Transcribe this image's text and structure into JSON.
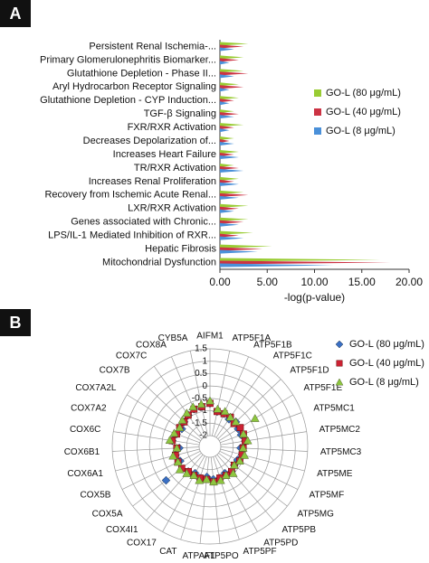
{
  "chart_data": [
    {
      "type": "bar",
      "orientation": "horizontal",
      "panel_label": "A",
      "categories": [
        "Persistent Renal Ischemia-...",
        "Primary Glomerulonephritis Biomarker...",
        "Glutathione Depletion - Phase II...",
        "Aryl Hydrocarbon Receptor Signaling",
        "Glutathione Depletion - CYP Induction...",
        "TGF-β Signaling",
        "FXR/RXR Activation",
        "Decreases Depolarization of...",
        "Increases Heart Failure",
        "TR/RXR Activation",
        "Increases Renal Proliferation",
        "Recovery from Ischemic Acute Renal...",
        "LXR/RXR Activation",
        "Genes associated with Chronic...",
        "LPS/IL-1 Mediated Inhibition of RXR...",
        "Hepatic Fibrosis",
        "Mitochondrial Dysfunction"
      ],
      "series": [
        {
          "name": "GO-L (80 μg/mL)",
          "color": "#99cc33",
          "values": [
            3,
            2.5,
            2.5,
            2,
            2,
            1.5,
            2.5,
            1.5,
            2,
            1.5,
            2,
            2.5,
            3,
            3,
            3.5,
            5.5,
            17
          ]
        },
        {
          "name": "GO-L (40 μg/mL)",
          "color": "#cc3344",
          "values": [
            2.5,
            2,
            3,
            2.5,
            1.5,
            2,
            1.5,
            1,
            1.5,
            2,
            1.5,
            3,
            2,
            2.5,
            2,
            4.5,
            18
          ]
        },
        {
          "name": "GO-L (8 μg/mL)",
          "color": "#4a90d9",
          "values": [
            1.5,
            1,
            1.5,
            1,
            1,
            1.5,
            1,
            1.5,
            2,
            2.5,
            2,
            2,
            1.5,
            2,
            2.5,
            4,
            12
          ]
        }
      ],
      "xlabel": "-log(p-value)",
      "xlim": [
        0,
        20
      ],
      "xticks": [
        {
          "value": 0,
          "label": "0.00"
        },
        {
          "value": 5,
          "label": "5.00"
        },
        {
          "value": 10,
          "label": "10.00"
        },
        {
          "value": 15,
          "label": "15.00"
        },
        {
          "value": 20,
          "label": "20.00"
        }
      ],
      "legend": "right"
    },
    {
      "type": "radar",
      "panel_label": "B",
      "categories": [
        "AIFM1",
        "ATP5F1A",
        "ATP5F1B",
        "ATP5F1C",
        "ATP5F1D",
        "ATP5F1E",
        "ATP5MC1",
        "ATP5MC2",
        "ATP5MC3",
        "ATP5ME",
        "ATP5MF",
        "ATP5MG",
        "ATP5PB",
        "ATP5PD",
        "ATP5PF",
        "ATP5PO",
        "ATPAF1",
        "CAT",
        "COX17",
        "COX4I1",
        "COX5A",
        "COX5B",
        "COX6A1",
        "COX6B1",
        "COX6C",
        "COX7A2",
        "COX7A2L",
        "COX7B",
        "COX7C",
        "COX8A",
        "CYB5A"
      ],
      "series": [
        {
          "name": "GO-L (80 μg/mL)",
          "color": "#3a6fc4",
          "marker": "diamond",
          "values": [
            -0.7,
            -1.0,
            -1.0,
            -1.1,
            -1.0,
            -1.1,
            -1.1,
            -1.0,
            -1.2,
            -1.1,
            -1.2,
            -1.2,
            -1.1,
            -1.2,
            -1.1,
            -1.1,
            -1.2,
            -1.1,
            -1.2,
            -1.1,
            -0.2,
            -1.1,
            -1.0,
            -1.2,
            -0.9,
            -1.0,
            -1.1,
            -1.0,
            -0.9,
            -0.8,
            -0.8
          ]
        },
        {
          "name": "GO-L (40 μg/mL)",
          "color": "#cc2233",
          "marker": "square",
          "values": [
            -0.7,
            -1.0,
            -1.0,
            -1.0,
            -1.1,
            -1.0,
            -1.0,
            -1.0,
            -1.1,
            -1.1,
            -1.1,
            -1.2,
            -1.1,
            -1.1,
            -1.1,
            -1.0,
            -1.1,
            -1.1,
            -1.1,
            -1.1,
            -1.0,
            -1.0,
            -1.0,
            -1.1,
            -0.9,
            -1.0,
            -1.0,
            -1.0,
            -0.9,
            -0.8,
            -0.8
          ]
        },
        {
          "name": "GO-L (8 μg/mL)",
          "color": "#8dc63f",
          "marker": "triangle",
          "values": [
            -0.6,
            -0.9,
            -0.9,
            -1.0,
            -1.0,
            -0.3,
            -1.0,
            -0.9,
            -1.1,
            -1.0,
            -1.1,
            -1.2,
            -1.0,
            -1.1,
            -1.0,
            -1.0,
            -1.1,
            -1.0,
            -1.1,
            -1.0,
            -0.9,
            -1.0,
            -0.9,
            -1.1,
            -0.8,
            -0.9,
            -1.0,
            -0.9,
            -0.8,
            -0.7,
            -0.7
          ]
        }
      ],
      "rlim": [
        -2,
        1.5
      ],
      "rticks": [
        1.5,
        1,
        0.5,
        0,
        -0.5,
        -1,
        -1.5,
        -2
      ],
      "grid": true,
      "legend": "right"
    }
  ]
}
